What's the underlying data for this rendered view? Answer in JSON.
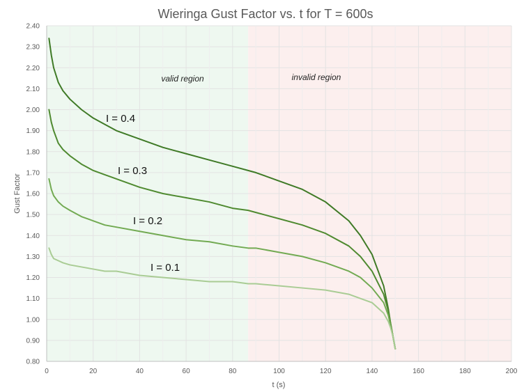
{
  "chart_data": {
    "type": "line",
    "title": "Wieringa Gust Factor vs. t for T = 600s",
    "xlabel": "t (s)",
    "ylabel": "Gust Factor",
    "xlim": [
      0,
      200
    ],
    "ylim": [
      0.8,
      2.4
    ],
    "xticks": [
      0,
      20,
      40,
      60,
      80,
      100,
      120,
      140,
      160,
      180,
      200
    ],
    "yticks": [
      0.8,
      0.9,
      1.0,
      1.1,
      1.2,
      1.3,
      1.4,
      1.5,
      1.6,
      1.7,
      1.8,
      1.9,
      2.0,
      2.1,
      2.2,
      2.3,
      2.4
    ],
    "xtick_labels": [
      "0",
      "20",
      "40",
      "60",
      "80",
      "100",
      "120",
      "140",
      "160",
      "180",
      "200"
    ],
    "ytick_labels": [
      "0.80",
      "0.90",
      "1.00",
      "1.10",
      "1.20",
      "1.30",
      "1.40",
      "1.50",
      "1.60",
      "1.70",
      "1.80",
      "1.90",
      "2.00",
      "2.10",
      "2.20",
      "2.30",
      "2.40"
    ],
    "grid": true,
    "regions": [
      {
        "label": "valid region",
        "x_range": [
          0,
          86.7
        ],
        "color": "#eef8f0"
      },
      {
        "label": "invalid region",
        "x_range": [
          86.7,
          200
        ],
        "color": "#fcefee"
      }
    ],
    "series": [
      {
        "name": "I = 0.4",
        "color": "#3f7a26",
        "x": [
          1,
          2,
          3,
          5,
          7,
          10,
          15,
          20,
          25,
          30,
          40,
          50,
          60,
          70,
          80,
          86.7,
          90,
          100,
          110,
          120,
          130,
          135,
          140,
          145,
          147,
          148,
          149,
          150
        ],
        "y": [
          2.34,
          2.26,
          2.2,
          2.13,
          2.09,
          2.05,
          2.0,
          1.96,
          1.93,
          1.9,
          1.86,
          1.82,
          1.79,
          1.76,
          1.73,
          1.71,
          1.7,
          1.66,
          1.62,
          1.56,
          1.47,
          1.4,
          1.31,
          1.16,
          1.05,
          0.98,
          0.92,
          0.86
        ]
      },
      {
        "name": "I = 0.3",
        "color": "#4f8a30",
        "x": [
          1,
          2,
          3,
          5,
          7,
          10,
          15,
          20,
          25,
          30,
          40,
          50,
          60,
          70,
          80,
          86.7,
          90,
          100,
          110,
          120,
          130,
          135,
          140,
          145,
          147,
          148,
          149,
          150
        ],
        "y": [
          2.0,
          1.94,
          1.9,
          1.84,
          1.81,
          1.78,
          1.74,
          1.71,
          1.69,
          1.67,
          1.63,
          1.6,
          1.58,
          1.56,
          1.53,
          1.52,
          1.51,
          1.48,
          1.45,
          1.41,
          1.35,
          1.3,
          1.23,
          1.12,
          1.04,
          0.98,
          0.92,
          0.86
        ]
      },
      {
        "name": "I = 0.2",
        "color": "#72aa52",
        "x": [
          1,
          2,
          3,
          5,
          7,
          10,
          15,
          20,
          25,
          30,
          40,
          50,
          60,
          70,
          80,
          86.7,
          90,
          100,
          110,
          120,
          130,
          135,
          140,
          145,
          147,
          148,
          149,
          150
        ],
        "y": [
          1.67,
          1.62,
          1.59,
          1.56,
          1.54,
          1.52,
          1.49,
          1.47,
          1.45,
          1.44,
          1.42,
          1.4,
          1.38,
          1.37,
          1.35,
          1.34,
          1.34,
          1.32,
          1.3,
          1.27,
          1.23,
          1.2,
          1.15,
          1.08,
          1.02,
          0.97,
          0.92,
          0.86
        ]
      },
      {
        "name": "I = 0.1",
        "color": "#a9cc94",
        "x": [
          1,
          2,
          3,
          5,
          7,
          10,
          15,
          20,
          25,
          30,
          40,
          50,
          60,
          70,
          80,
          86.7,
          90,
          100,
          110,
          120,
          130,
          135,
          140,
          145,
          147,
          148,
          149,
          150
        ],
        "y": [
          1.34,
          1.31,
          1.29,
          1.28,
          1.27,
          1.26,
          1.25,
          1.24,
          1.23,
          1.23,
          1.21,
          1.2,
          1.19,
          1.18,
          1.18,
          1.17,
          1.17,
          1.16,
          1.15,
          1.14,
          1.12,
          1.1,
          1.08,
          1.03,
          0.99,
          0.96,
          0.92,
          0.86
        ]
      }
    ]
  }
}
